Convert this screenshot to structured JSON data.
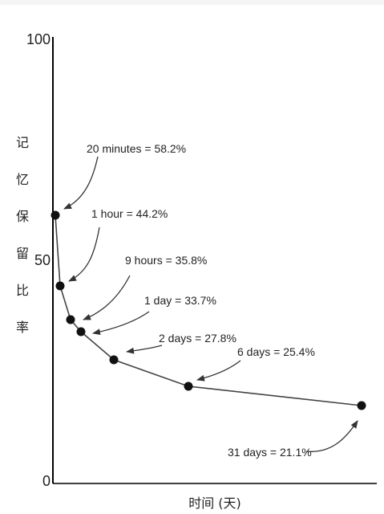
{
  "chart_data": {
    "type": "line",
    "title": "",
    "xlabel": "时间 (天)",
    "ylabel": "记忆保留比率",
    "ylim": [
      0,
      100
    ],
    "yticks": [
      "0",
      "50",
      "100"
    ],
    "series": [
      {
        "points": [
          {
            "x": 0.0139,
            "y": 58.2,
            "label": "20 minutes = 58.2%"
          },
          {
            "x": 0.0417,
            "y": 44.2,
            "label": "1 hour = 44.2%"
          },
          {
            "x": 0.375,
            "y": 35.8,
            "label": "9 hours = 35.8%"
          },
          {
            "x": 1,
            "y": 33.7,
            "label": "1 day = 33.7%"
          },
          {
            "x": 2,
            "y": 27.8,
            "label": "2 days = 27.8%"
          },
          {
            "x": 6,
            "y": 25.4,
            "label": "6 days = 25.4%"
          },
          {
            "x": 31,
            "y": 21.1,
            "label": "31 days = 21.1%"
          }
        ]
      }
    ],
    "line_color": "#444444",
    "marker_color": "#111111",
    "grid": false,
    "legend": "none"
  }
}
